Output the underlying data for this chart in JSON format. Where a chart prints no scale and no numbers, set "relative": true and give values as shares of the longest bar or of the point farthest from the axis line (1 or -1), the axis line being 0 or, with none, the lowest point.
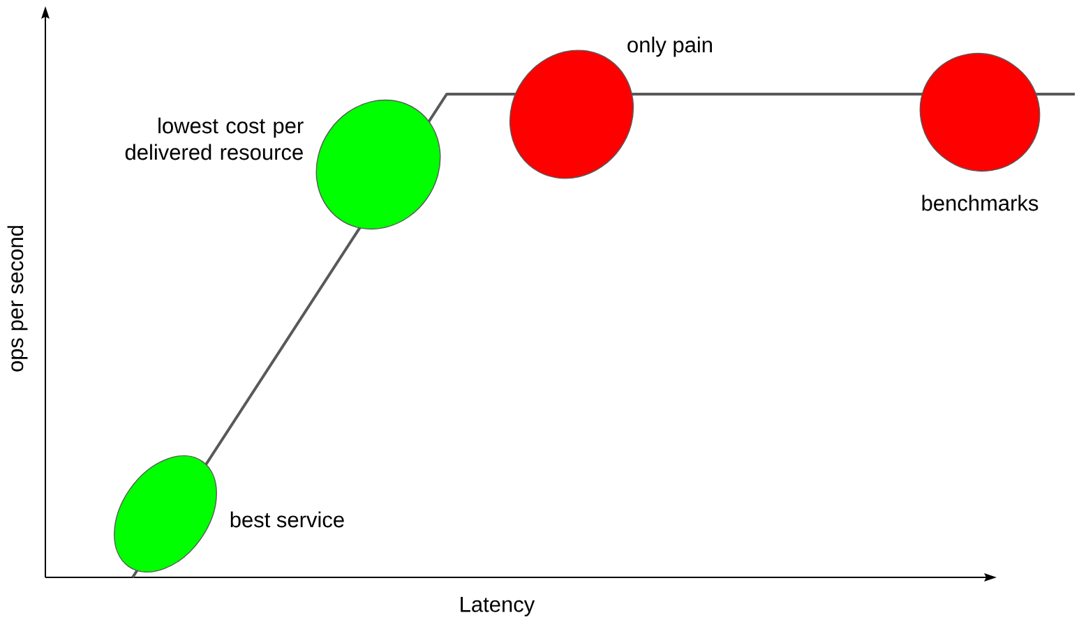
{
  "chart_data": {
    "type": "line",
    "relative": true,
    "xlabel": "Latency",
    "ylabel": "ops per second",
    "categories": [
      null,
      null,
      null,
      null
    ],
    "series": [
      {
        "color": "#595959",
        "values": [
          0,
          1,
          1,
          1
        ]
      }
    ],
    "marker": "none",
    "annotations": [
      "best service",
      "lowest cost per delivered resource",
      "only pain",
      "benchmarks"
    ]
  }
}
